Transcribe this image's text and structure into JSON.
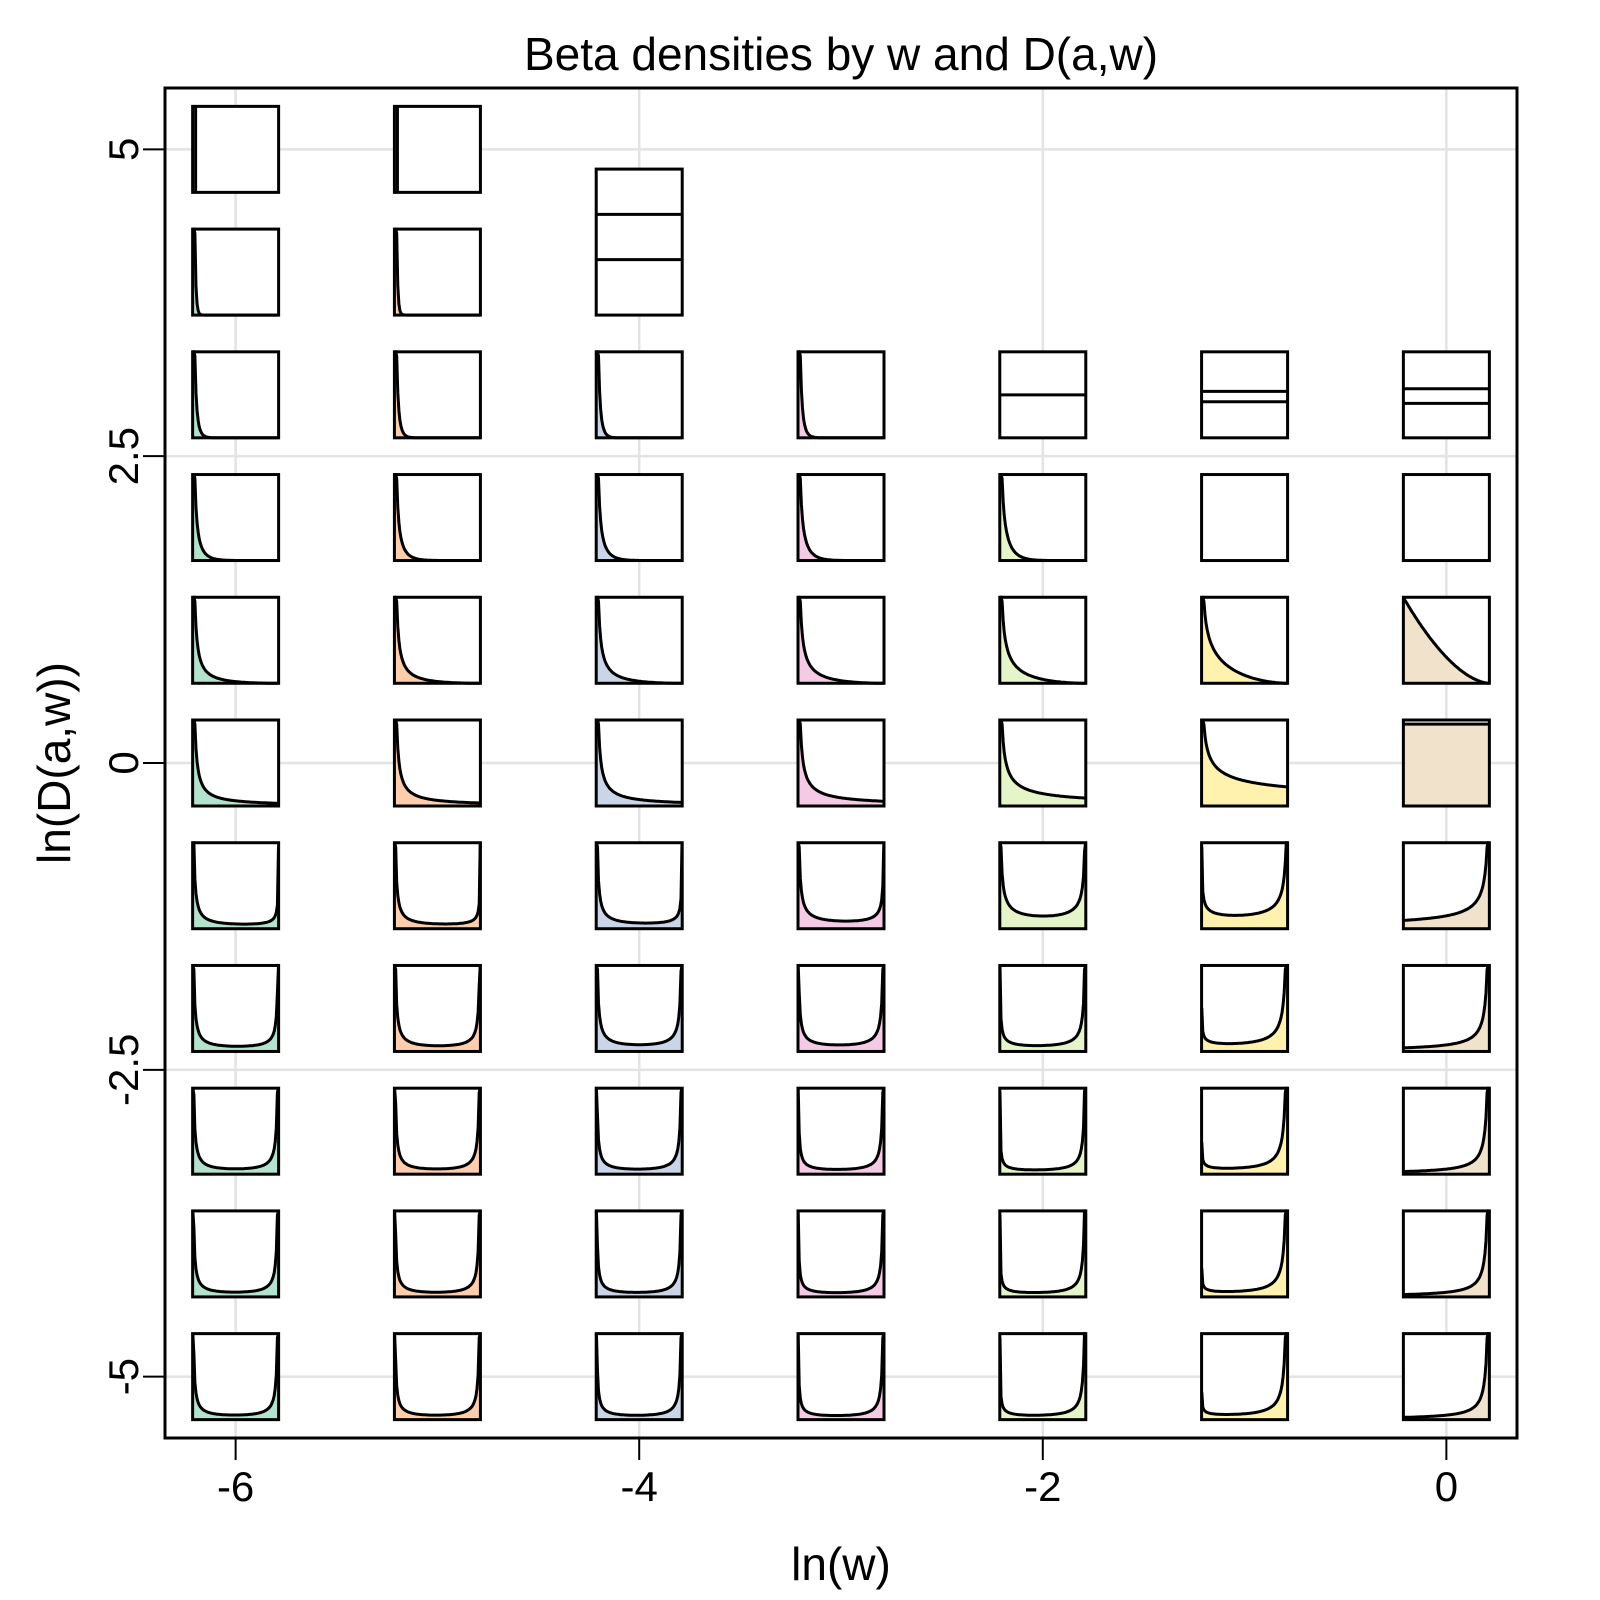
{
  "chart_data": {
    "type": "small-multiples-density-grid",
    "title": "Beta densities by w and D(a,w)",
    "xlabel": "ln(w)",
    "ylabel": "ln(D(a,w))",
    "x_ticks": [
      "-6",
      "-4",
      "-2",
      "0"
    ],
    "x_tick_values": [
      -6,
      -4,
      -2,
      0
    ],
    "y_ticks": [
      "5",
      "2.5",
      "0",
      "-2.5",
      "-5"
    ],
    "y_tick_values": [
      5,
      2.5,
      0,
      -2.5,
      -5
    ],
    "xlim": [
      -6.35,
      0.35
    ],
    "ylim": [
      -5.5,
      5.5
    ],
    "grid": true,
    "column_ln_w": [
      -6,
      -5,
      -4,
      -3,
      -2,
      -1,
      0
    ],
    "row_ln_D": [
      5,
      4,
      3,
      2,
      1,
      0,
      -1,
      -2,
      -3,
      -4,
      -5
    ],
    "column_colors": [
      "#b3e2cd",
      "#fdcdac",
      "#cbd5e8",
      "#f4cae4",
      "#e6f5c9",
      "#fff2ae",
      "#f1e2cc"
    ],
    "panels_blank": [
      [
        true,
        true,
        false,
        false,
        false,
        false,
        false
      ],
      [
        false,
        false,
        true,
        true,
        true,
        true,
        true
      ],
      [
        false,
        false,
        false,
        false,
        true,
        true,
        true
      ],
      [
        false,
        false,
        false,
        false,
        false,
        true,
        true
      ],
      [
        false,
        false,
        false,
        false,
        false,
        false,
        false
      ],
      [
        false,
        false,
        false,
        false,
        false,
        false,
        false
      ],
      [
        false,
        false,
        false,
        false,
        false,
        false,
        false
      ],
      [
        false,
        false,
        false,
        false,
        false,
        false,
        false
      ],
      [
        false,
        false,
        false,
        false,
        false,
        false,
        false
      ],
      [
        false,
        false,
        false,
        false,
        false,
        false,
        false
      ],
      [
        false,
        false,
        false,
        false,
        false,
        false,
        false
      ]
    ],
    "panels_present": [
      [
        true,
        true,
        false,
        false,
        false,
        false,
        false
      ],
      [
        true,
        true,
        true,
        false,
        false,
        false,
        false
      ],
      [
        true,
        true,
        true,
        true,
        true,
        true,
        true
      ],
      [
        true,
        true,
        true,
        true,
        true,
        true,
        true
      ],
      [
        true,
        true,
        true,
        true,
        true,
        true,
        true
      ],
      [
        true,
        true,
        true,
        true,
        true,
        true,
        true
      ],
      [
        true,
        true,
        true,
        true,
        true,
        true,
        true
      ],
      [
        true,
        true,
        true,
        true,
        true,
        true,
        true
      ],
      [
        true,
        true,
        true,
        true,
        true,
        true,
        true
      ],
      [
        true,
        true,
        true,
        true,
        true,
        true,
        true
      ],
      [
        true,
        true,
        true,
        true,
        true,
        true,
        true
      ]
    ]
  }
}
